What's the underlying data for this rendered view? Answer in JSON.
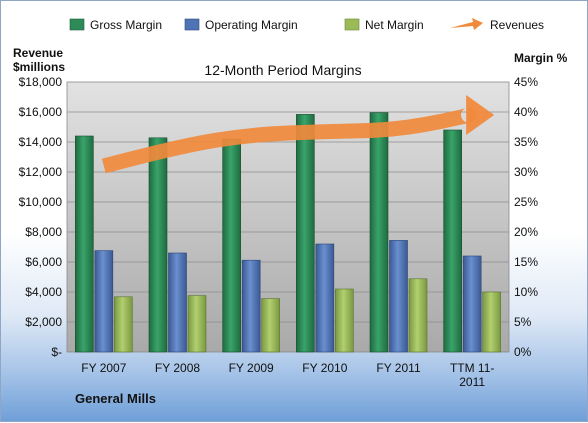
{
  "chart_data": {
    "type": "bar",
    "title": "12-Month Period Margins",
    "company": "General Mills",
    "y_left_label_line1": "Revenue",
    "y_left_label_line2": "$millions",
    "y_right_label": "Margin %",
    "categories": [
      "FY 2007",
      "FY 2008",
      "FY 2009",
      "FY 2010",
      "FY 2011",
      "TTM 11-2011"
    ],
    "category_lines": [
      [
        "FY 2007"
      ],
      [
        "FY 2008"
      ],
      [
        "FY 2009"
      ],
      [
        "FY 2010"
      ],
      [
        "FY 2011"
      ],
      [
        "TTM 11-",
        "2011"
      ]
    ],
    "y_left": {
      "min": 0,
      "max": 18000,
      "step": 2000,
      "ticks": [
        "$-",
        "$2,000",
        "$4,000",
        "$6,000",
        "$8,000",
        "$10,000",
        "$12,000",
        "$14,000",
        "$16,000",
        "$18,000"
      ]
    },
    "y_right": {
      "min": 0,
      "max": 45,
      "step": 5,
      "ticks": [
        "0%",
        "5%",
        "10%",
        "15%",
        "20%",
        "25%",
        "30%",
        "35%",
        "40%",
        "45%"
      ]
    },
    "series": [
      {
        "name": "Gross Margin",
        "axis": "right",
        "color": "#2e8b57",
        "values": [
          36.0,
          35.7,
          35.5,
          39.6,
          39.9,
          37.0
        ]
      },
      {
        "name": "Operating Margin",
        "axis": "right",
        "color": "#4f73b4",
        "values": [
          16.9,
          16.5,
          15.3,
          18.0,
          18.6,
          16.0
        ]
      },
      {
        "name": "Net Margin",
        "axis": "right",
        "color": "#9bbb59",
        "values": [
          9.2,
          9.4,
          8.9,
          10.5,
          12.2,
          10.0
        ]
      },
      {
        "name": "Revenues",
        "axis": "left",
        "color": "#f08a3c",
        "type": "arrow",
        "values": [
          12400,
          13700,
          14500,
          14700,
          14800,
          15800
        ]
      }
    ],
    "legend_position": "top",
    "grid": true
  }
}
